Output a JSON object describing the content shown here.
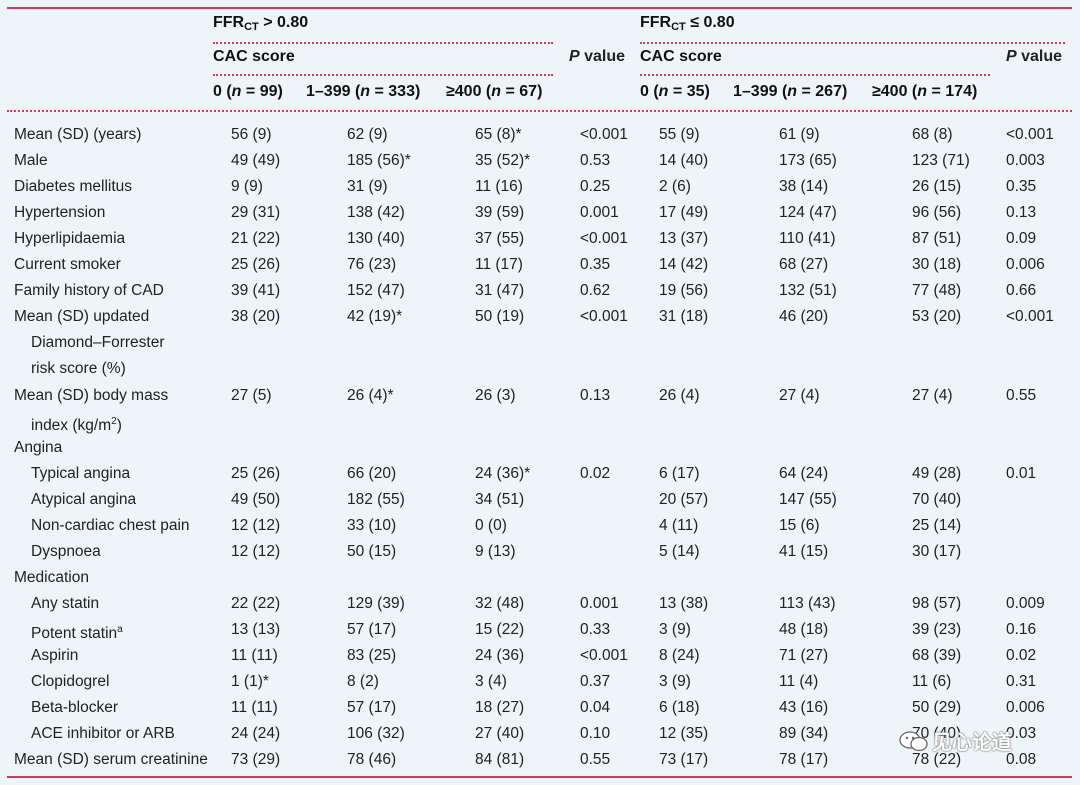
{
  "header": {
    "group1_title_a": "FFR",
    "group1_title_sub": "CT",
    "group1_title_b": " > 0.80",
    "group2_title_a": "FFR",
    "group2_title_sub": "CT",
    "group2_title_b": " ≤ 0.80",
    "cac_label": "CAC score",
    "p_label": "value",
    "p_letter": "P",
    "cols": [
      {
        "pre": "0 (",
        "n": "n",
        "post": " = 99)"
      },
      {
        "pre": "1–399 (",
        "n": "n",
        "post": " = 333)"
      },
      {
        "pre": "≥400 (",
        "n": "n",
        "post": " = 67)"
      },
      {
        "pre": "0 (",
        "n": "n",
        "post": " = 35)"
      },
      {
        "pre": "1–399 (",
        "n": "n",
        "post": " = 267)"
      },
      {
        "pre": "≥400 (",
        "n": "n",
        "post": " = 174)"
      }
    ]
  },
  "rows": [
    {
      "label": "Mean (SD) (years)",
      "indent": false,
      "v": [
        "56 (9)",
        "62 (9)",
        "65 (8)*",
        "<0.001",
        "55 (9)",
        "61 (9)",
        "68 (8)",
        "<0.001"
      ]
    },
    {
      "label": "Male",
      "indent": false,
      "v": [
        "49 (49)",
        "185 (56)*",
        "35 (52)*",
        "0.53",
        "14 (40)",
        "173 (65)",
        "123 (71)",
        "0.003"
      ]
    },
    {
      "label": "Diabetes mellitus",
      "indent": false,
      "v": [
        "9 (9)",
        "31 (9)",
        "11 (16)",
        "0.25",
        "2 (6)",
        "38 (14)",
        "26 (15)",
        "0.35"
      ]
    },
    {
      "label": "Hypertension",
      "indent": false,
      "v": [
        "29 (31)",
        "138 (42)",
        "39 (59)",
        "0.001",
        "17 (49)",
        "124 (47)",
        "96 (56)",
        "0.13"
      ]
    },
    {
      "label": "Hyperlipidaemia",
      "indent": false,
      "v": [
        "21 (22)",
        "130 (40)",
        "37 (55)",
        "<0.001",
        "13 (37)",
        "110 (41)",
        "87 (51)",
        "0.09"
      ]
    },
    {
      "label": "Current smoker",
      "indent": false,
      "v": [
        "25 (26)",
        "76 (23)",
        "11 (17)",
        "0.35",
        "14 (42)",
        "68 (27)",
        "30 (18)",
        "0.006"
      ]
    },
    {
      "label": "Family history of CAD",
      "indent": false,
      "v": [
        "39 (41)",
        "152 (47)",
        "31 (47)",
        "0.62",
        "19 (56)",
        "132 (51)",
        "77 (48)",
        "0.66"
      ]
    },
    {
      "label": "Mean (SD) updated",
      "indent": false,
      "v": [
        "38 (20)",
        "42 (19)*",
        "50 (19)",
        "<0.001",
        "31 (18)",
        "46 (20)",
        "53 (20)",
        "<0.001"
      ]
    },
    {
      "label": "Diamond–Forrester",
      "indent": true,
      "v": [
        "",
        "",
        "",
        "",
        "",
        "",
        "",
        ""
      ]
    },
    {
      "label": "risk score (%)",
      "indent": true,
      "v": [
        "",
        "",
        "",
        "",
        "",
        "",
        "",
        ""
      ]
    },
    {
      "label": "Mean (SD) body mass",
      "indent": false,
      "v": [
        "27 (5)",
        "26 (4)*",
        "26 (3)",
        "0.13",
        "26 (4)",
        "27 (4)",
        "27 (4)",
        "0.55"
      ]
    },
    {
      "label": "index (kg/m",
      "label_sup": "2",
      "label_tail": ")",
      "indent": true,
      "v": [
        "",
        "",
        "",
        "",
        "",
        "",
        "",
        ""
      ]
    },
    {
      "label": "Angina",
      "indent": false,
      "v": [
        "",
        "",
        "",
        "",
        "",
        "",
        "",
        ""
      ]
    },
    {
      "label": "Typical angina",
      "indent": true,
      "v": [
        "25 (26)",
        "66 (20)",
        "24 (36)*",
        "0.02",
        "6 (17)",
        "64 (24)",
        "49 (28)",
        "0.01"
      ]
    },
    {
      "label": "Atypical angina",
      "indent": true,
      "v": [
        "49 (50)",
        "182 (55)",
        "34 (51)",
        "",
        "20 (57)",
        "147 (55)",
        "70 (40)",
        ""
      ]
    },
    {
      "label": "Non-cardiac chest pain",
      "indent": true,
      "v": [
        "12 (12)",
        "33 (10)",
        "0 (0)",
        "",
        "4 (11)",
        "15 (6)",
        "25 (14)",
        ""
      ]
    },
    {
      "label": "Dyspnoea",
      "indent": true,
      "v": [
        "12 (12)",
        "50 (15)",
        "9 (13)",
        "",
        "5 (14)",
        "41 (15)",
        "30 (17)",
        ""
      ]
    },
    {
      "label": "Medication",
      "indent": false,
      "v": [
        "",
        "",
        "",
        "",
        "",
        "",
        "",
        ""
      ]
    },
    {
      "label": "Any statin",
      "indent": true,
      "v": [
        "22 (22)",
        "129 (39)",
        "32 (48)",
        "0.001",
        "13 (38)",
        "113 (43)",
        "98 (57)",
        "0.009"
      ]
    },
    {
      "label": "Potent statin",
      "label_sup": "a",
      "label_tail": "",
      "indent": true,
      "v": [
        "13 (13)",
        "57 (17)",
        "15 (22)",
        "0.33",
        "3 (9)",
        "48 (18)",
        "39 (23)",
        "0.16"
      ]
    },
    {
      "label": "Aspirin",
      "indent": true,
      "v": [
        "11 (11)",
        "83 (25)",
        "24 (36)",
        "<0.001",
        "8 (24)",
        "71 (27)",
        "68 (39)",
        "0.02"
      ]
    },
    {
      "label": "Clopidogrel",
      "indent": true,
      "v": [
        "1 (1)*",
        "8 (2)",
        "3 (4)",
        "0.37",
        "3 (9)",
        "11 (4)",
        "11 (6)",
        "0.31"
      ]
    },
    {
      "label": "Beta-blocker",
      "indent": true,
      "v": [
        "11 (11)",
        "57 (17)",
        "18 (27)",
        "0.04",
        "6 (18)",
        "43 (16)",
        "50 (29)",
        "0.006"
      ]
    },
    {
      "label": "ACE inhibitor or ARB",
      "indent": true,
      "v": [
        "24 (24)",
        "106 (32)",
        "27 (40)",
        "0.10",
        "12 (35)",
        "89 (34)",
        "70 (40)",
        "0.03"
      ]
    },
    {
      "label": "Mean (SD) serum creatinine",
      "indent": false,
      "v": [
        "73 (29)",
        "78 (46)",
        "84 (81)",
        "0.55",
        "73 (17)",
        "78 (17)",
        "78 (22)",
        "0.08"
      ]
    }
  ],
  "watermark": "见心论道",
  "watermark_icon": "wechat-icon"
}
